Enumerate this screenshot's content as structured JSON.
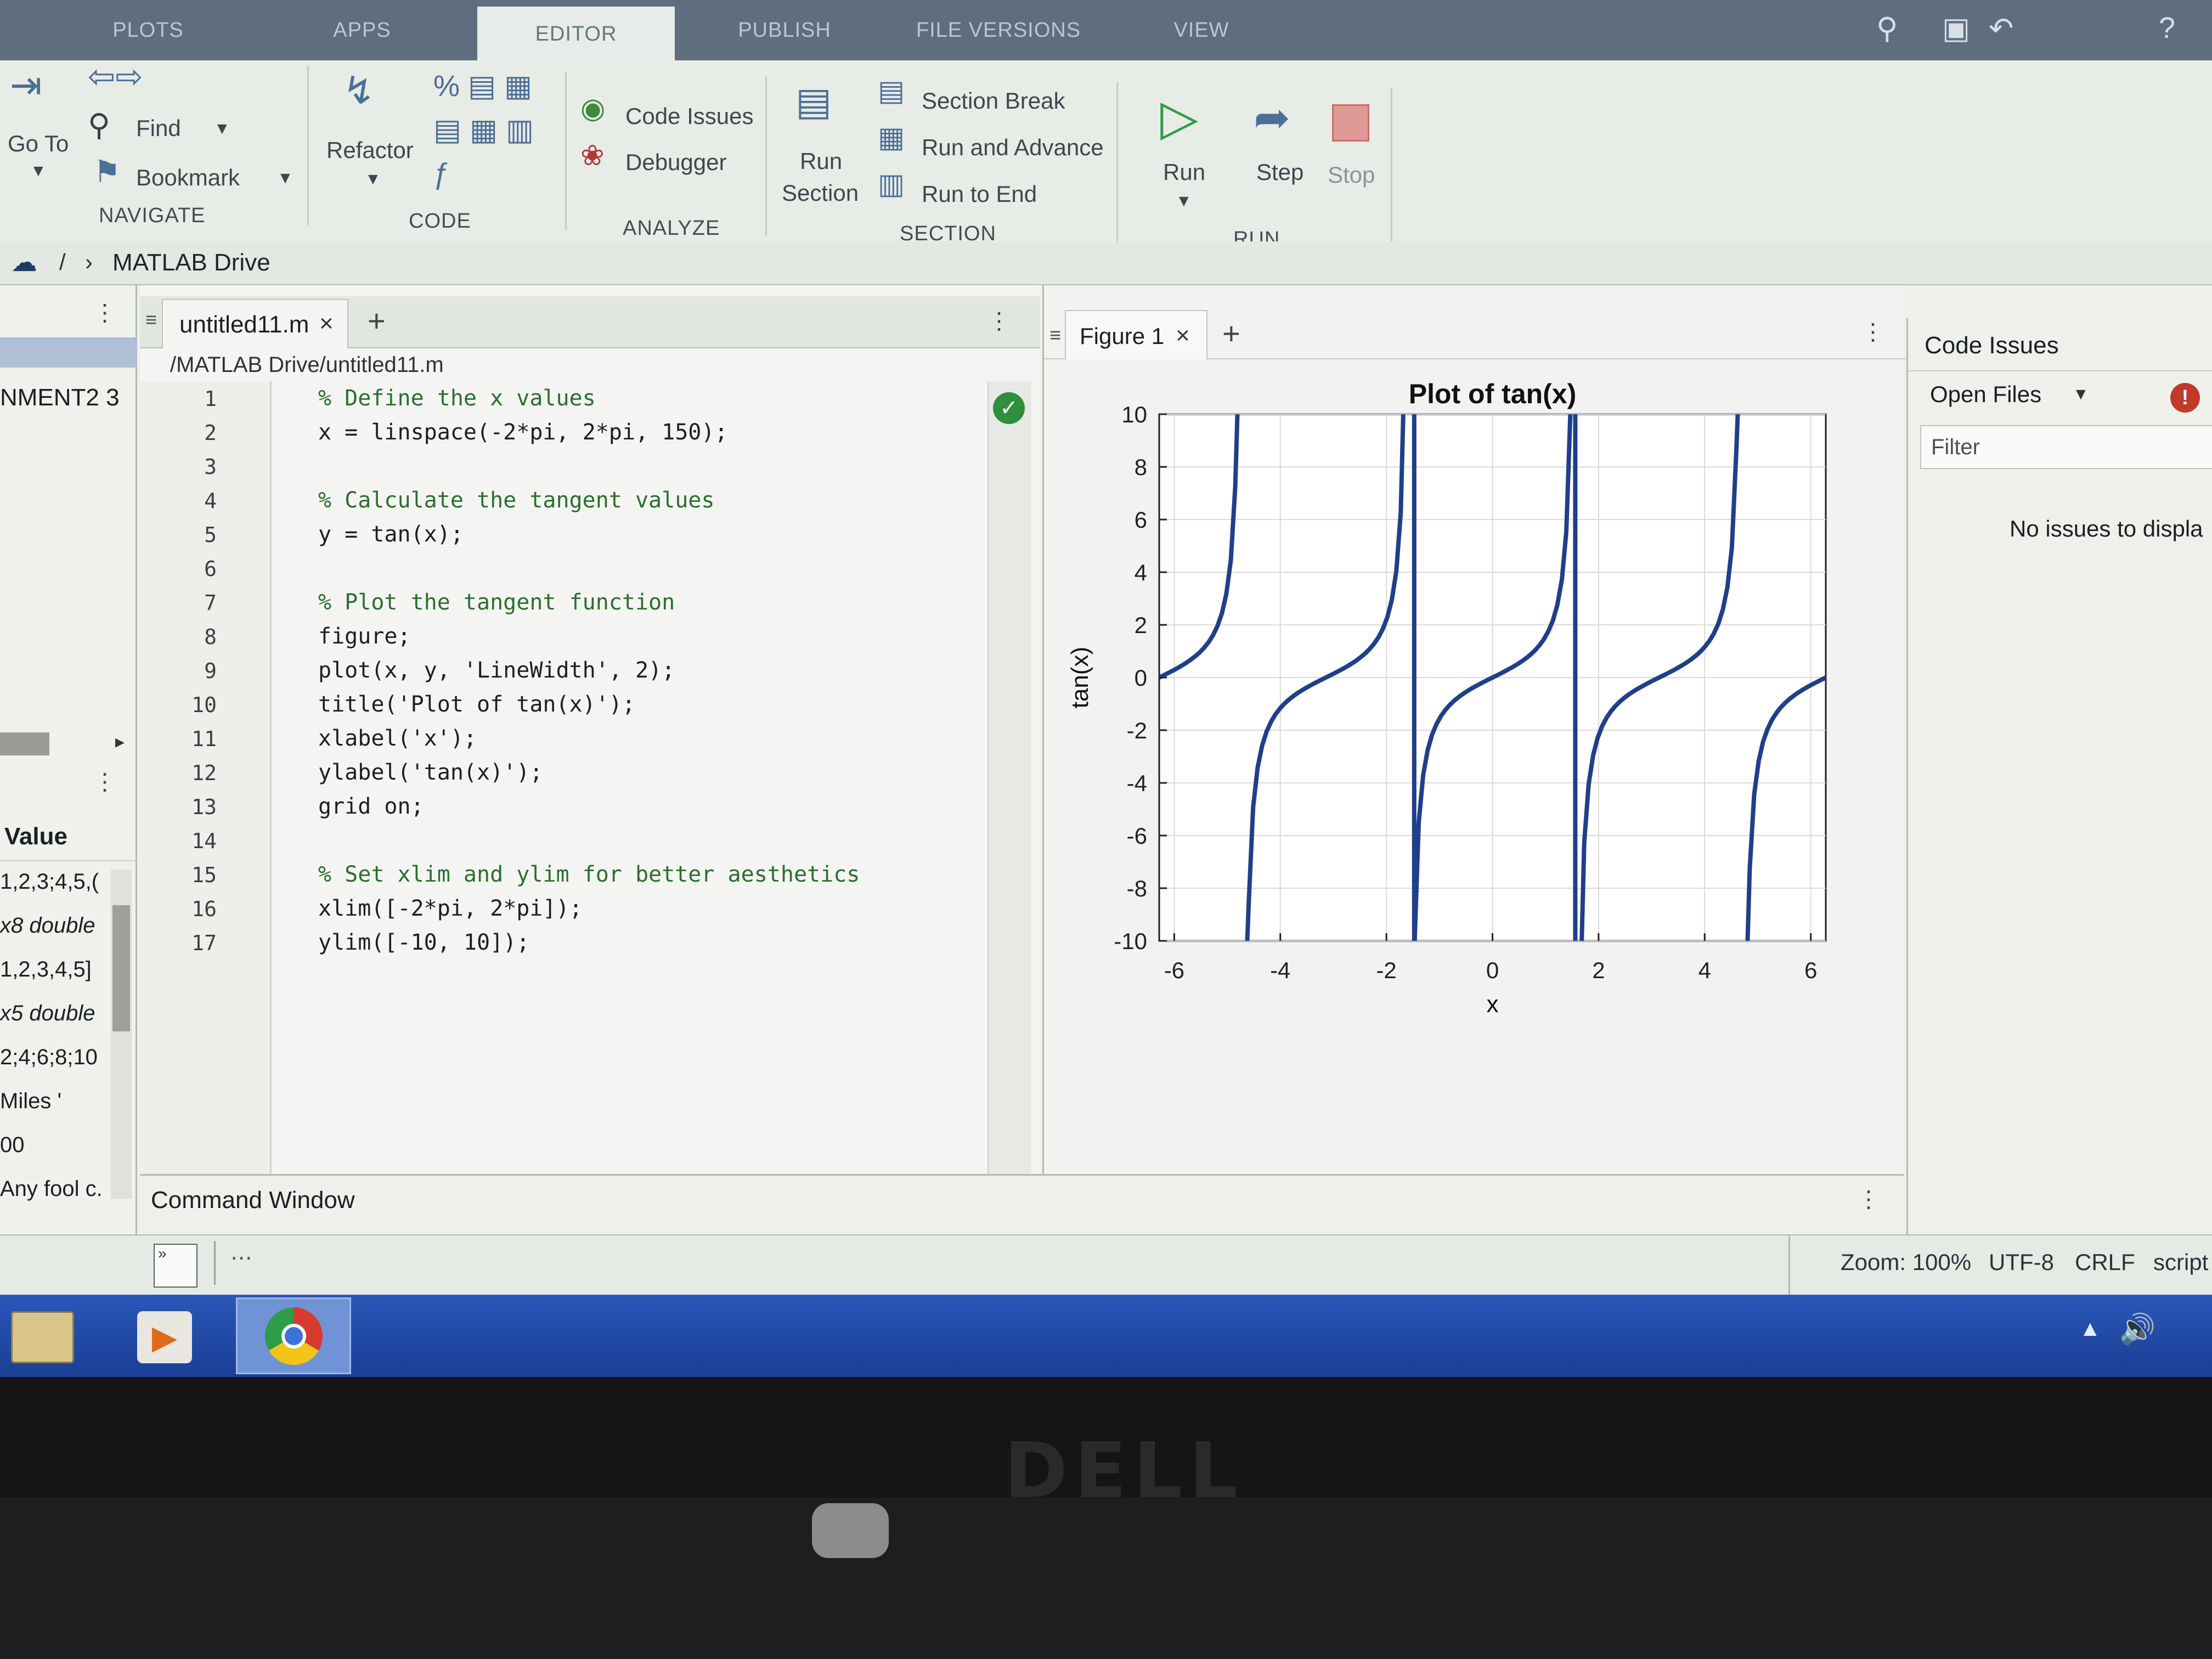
{
  "tabs": [
    "PLOTS",
    "APPS",
    "EDITOR",
    "PUBLISH",
    "FILE VERSIONS",
    "VIEW"
  ],
  "ribbon": {
    "navigate": {
      "goto": "Go To",
      "find": "Find",
      "bookmark": "Bookmark",
      "section": "NAVIGATE"
    },
    "code": {
      "refactor": "Refactor",
      "section": "CODE"
    },
    "analyze": {
      "code_issues": "Code Issues",
      "debugger": "Debugger",
      "section": "ANALYZE"
    },
    "section": {
      "run_section_1": "Run",
      "run_section_2": "Section",
      "section_break": "Section Break",
      "run_and_advance": "Run and Advance",
      "run_to_end": "Run to End",
      "section": "SECTION"
    },
    "run": {
      "run": "Run",
      "step": "Step",
      "stop": "Stop",
      "section": "RUN"
    }
  },
  "address": {
    "crumb_root": "/",
    "crumb_folder": "MATLAB Drive"
  },
  "workspace": {
    "header_text": "NMENT2 3",
    "value_header": "Value",
    "values": [
      "1,2,3;4,5,(",
      "x8 double",
      "1,2,3,4,5]",
      "x5 double",
      "2;4;6;8;10",
      "Miles '",
      "00",
      "Any fool c."
    ]
  },
  "editor": {
    "tab_label": "untitled11.m",
    "path": "/MATLAB Drive/untitled11.m",
    "lines": [
      "% Define the x values",
      "x = linspace(-2*pi, 2*pi, 150);",
      "",
      "% Calculate the tangent values",
      "y = tan(x);",
      "",
      "% Plot the tangent function",
      "figure;",
      "plot(x, y, 'LineWidth', 2);",
      "title('Plot of tan(x)');",
      "xlabel('x');",
      "ylabel('tan(x)');",
      "grid on;",
      "",
      "% Set xlim and ylim for better aesthetics",
      "xlim([-2*pi, 2*pi]);",
      "ylim([-10, 10]);"
    ],
    "line_numbers": [
      "1",
      "2",
      "3",
      "4",
      "5",
      "6",
      "7",
      "8",
      "9",
      "10",
      "11",
      "12",
      "13",
      "14",
      "15",
      "16",
      "17"
    ]
  },
  "figure": {
    "tab_label": "Figure 1"
  },
  "chart_data": {
    "type": "line",
    "title": "Plot of tan(x)",
    "xlabel": "x",
    "ylabel": "tan(x)",
    "function": "tan(x)",
    "xlim": [
      -6.2832,
      6.2832
    ],
    "ylim": [
      -10,
      10
    ],
    "points": 150,
    "grid": true,
    "series_color": "#1f3f8a",
    "xticks": [
      "-6",
      "-4",
      "-2",
      "0",
      "2",
      "4",
      "6"
    ],
    "xtick_values": [
      -6,
      -4,
      -2,
      0,
      2,
      4,
      6
    ],
    "yticks": [
      "10",
      "8",
      "6",
      "4",
      "2",
      "0",
      "-2",
      "-4",
      "-6",
      "-8",
      "-10"
    ],
    "ytick_values": [
      10,
      8,
      6,
      4,
      2,
      0,
      -2,
      -4,
      -6,
      -8,
      -10
    ]
  },
  "issues": {
    "title": "Code Issues",
    "scope": "Open Files",
    "filter_placeholder": "Filter",
    "empty_text": "No issues to displa"
  },
  "command_window": {
    "title": "Command Window"
  },
  "status": {
    "zoom": "Zoom: 100%",
    "encoding": "UTF-8",
    "eol": "CRLF",
    "type": "script"
  },
  "bezel": {
    "brand": "DELL"
  }
}
